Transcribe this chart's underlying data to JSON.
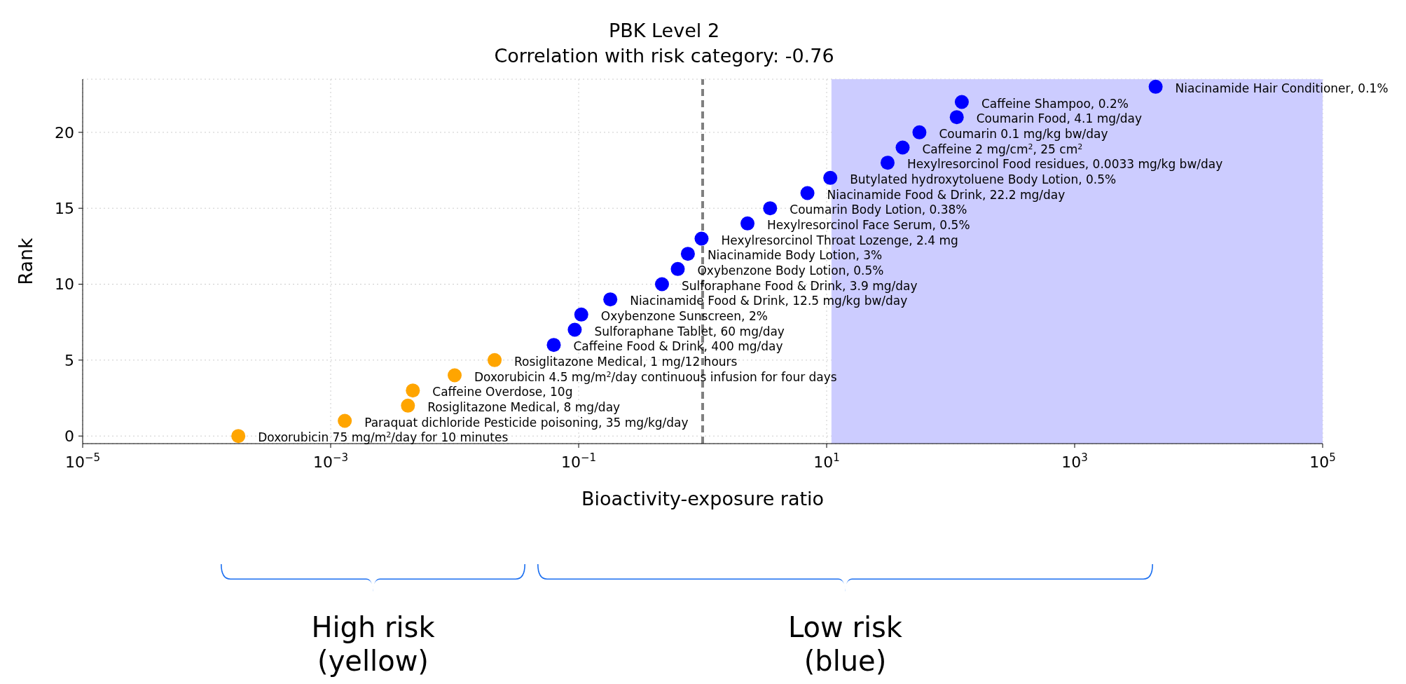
{
  "chart_data": {
    "type": "scatter",
    "title": "PBK Level 2",
    "subtitle": "Correlation with risk category: -0.76",
    "xlabel": "Bioactivity-exposure ratio",
    "ylabel": "Rank",
    "log": "x",
    "grid": true,
    "marker": "circle",
    "x": [
      0.00018,
      0.0013,
      0.0042,
      0.0046,
      0.01,
      0.021,
      0.063,
      0.093,
      0.105,
      0.18,
      0.47,
      0.63,
      0.76,
      0.98,
      2.3,
      3.5,
      7.0,
      10.7,
      31,
      41,
      56,
      112,
      123,
      4500
    ],
    "values": [
      0,
      1,
      2,
      3,
      4,
      5,
      6,
      7,
      8,
      9,
      10,
      11,
      12,
      13,
      14,
      15,
      16,
      17,
      18,
      19,
      20,
      21,
      22,
      23
    ],
    "colors": [
      "#ffa500",
      "#ffa500",
      "#ffa500",
      "#ffa500",
      "#ffa500",
      "#ffa500",
      "#0000ff",
      "#0000ff",
      "#0000ff",
      "#0000ff",
      "#0000ff",
      "#0000ff",
      "#0000ff",
      "#0000ff",
      "#0000ff",
      "#0000ff",
      "#0000ff",
      "#0000ff",
      "#0000ff",
      "#0000ff",
      "#0000ff",
      "#0000ff",
      "#0000ff",
      "#0000ff"
    ],
    "xlim": [
      1e-05,
      100000
    ],
    "xticks": [
      {
        "value": 1e-05,
        "label": "10$^{−5}$"
      },
      {
        "value": 0.001,
        "label": "10$^{−3}$"
      },
      {
        "value": 0.1,
        "label": "10$^{−1}$"
      },
      {
        "value": 10,
        "label": "10$^{1}$"
      },
      {
        "value": 1000,
        "label": "10$^{3}$"
      },
      {
        "value": 100000,
        "label": "10$^{5}$"
      }
    ],
    "ylim": [
      -0.5,
      23.5
    ],
    "yticks": [
      0,
      5,
      10,
      15,
      20
    ],
    "ref_lines": [
      {
        "axis": "x",
        "value": 1,
        "color": "#808080",
        "line_style": "dashed"
      }
    ],
    "bands": [
      {
        "axis": "x",
        "from": 11,
        "to": 100000,
        "color": "#ccccff"
      }
    ],
    "annotations": [
      {
        "text": "Doxorubicin 75 mg/m$^{2}$/day for 10 minutes",
        "x": 0.00018,
        "y": 0
      },
      {
        "text": "Paraquat dichloride Pesticide poisoning, 35 mg/kg/day",
        "x": 0.0013,
        "y": 1
      },
      {
        "text": "Rosiglitazone Medical, 8 mg/day",
        "x": 0.0042,
        "y": 2
      },
      {
        "text": "Caffeine Overdose, 10g",
        "x": 0.0046,
        "y": 3
      },
      {
        "text": "Doxorubicin 4.5 mg/m$^{2}$/day continuous infusion for four days",
        "x": 0.01,
        "y": 4
      },
      {
        "text": "Rosiglitazone Medical, 1 mg/12 hours",
        "x": 0.021,
        "y": 5
      },
      {
        "text": "Caffeine Food & Drink, 400 mg/day",
        "x": 0.063,
        "y": 6
      },
      {
        "text": "Sulforaphane Tablet, 60 mg/day",
        "x": 0.093,
        "y": 7
      },
      {
        "text": "Oxybenzone Sunscreen, 2%",
        "x": 0.105,
        "y": 8
      },
      {
        "text": "Niacinamide Food & Drink, 12.5 mg/kg bw/day",
        "x": 0.18,
        "y": 9
      },
      {
        "text": "Sulforaphane Food & Drink, 3.9 mg/day",
        "x": 0.47,
        "y": 10
      },
      {
        "text": "Oxybenzone Body Lotion, 0.5%",
        "x": 0.63,
        "y": 11
      },
      {
        "text": "Niacinamide Body Lotion, 3%",
        "x": 0.76,
        "y": 12
      },
      {
        "text": "Hexylresorcinol Throat Lozenge, 2.4 mg",
        "x": 0.98,
        "y": 13
      },
      {
        "text": "Hexylresorcinol Face Serum, 0.5%",
        "x": 2.3,
        "y": 14
      },
      {
        "text": "Coumarin Body Lotion, 0.38%",
        "x": 3.5,
        "y": 15
      },
      {
        "text": "Niacinamide Food & Drink, 22.2 mg/day",
        "x": 7.0,
        "y": 16
      },
      {
        "text": "Butylated hydroxytoluene Body Lotion, 0.5%",
        "x": 10.7,
        "y": 17
      },
      {
        "text": "Hexylresorcinol Food residues, 0.0033 mg/kg bw/day",
        "x": 31,
        "y": 18
      },
      {
        "text": "Caffeine 2 mg/cm$^{2}$, 25 cm$^{2}$",
        "x": 41,
        "y": 19
      },
      {
        "text": "Coumarin 0.1 mg/kg bw/day",
        "x": 56,
        "y": 20
      },
      {
        "text": "Coumarin Food, 4.1 mg/day",
        "x": 112,
        "y": 21
      },
      {
        "text": "Caffeine Shampoo, 0.2%",
        "x": 123,
        "y": 22
      },
      {
        "text": "Niacinamide Hair Conditioner, 0.1%",
        "x": 4500,
        "y": 23
      },
      "High risk (yellow)",
      "Low risk (blue)"
    ]
  }
}
